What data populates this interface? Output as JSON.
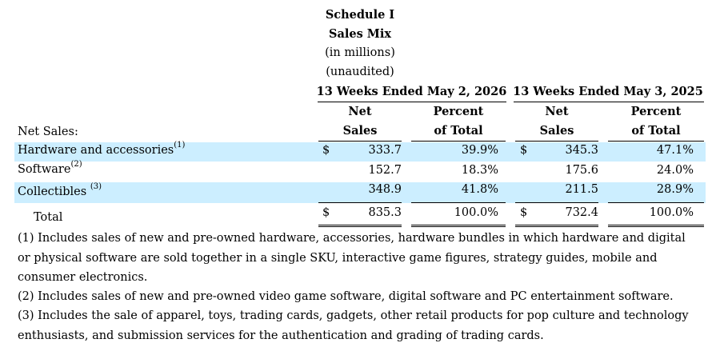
{
  "header": {
    "schedule": "Schedule I",
    "title": "Sales Mix",
    "units": "(in millions)",
    "audit": "(unaudited)"
  },
  "periods": [
    {
      "label": "13 Weeks Ended May 2, 2026",
      "col1_line1": "Net",
      "col1_line2": "Sales",
      "col2_line1": "Percent",
      "col2_line2": "of Total"
    },
    {
      "label": "13 Weeks Ended May 3, 2025",
      "col1_line1": "Net",
      "col1_line2": "Sales",
      "col2_line1": "Percent",
      "col2_line2": "of Total"
    }
  ],
  "section_label": "Net Sales:",
  "rows": [
    {
      "label": "Hardware and accessories",
      "note": "(1)",
      "cur": "$",
      "sales_2026": "333.7",
      "pct_2026": "39.9%",
      "cur2": "$",
      "sales_2025": "345.3",
      "pct_2025": "47.1%",
      "shaded": true
    },
    {
      "label": "Software",
      "note": "(2)",
      "cur": "",
      "sales_2026": "152.7",
      "pct_2026": "18.3%",
      "cur2": "",
      "sales_2025": "175.6",
      "pct_2025": "24.0%",
      "shaded": false
    },
    {
      "label": "Collectibles ",
      "note": "(3)",
      "cur": "",
      "sales_2026": "348.9",
      "pct_2026": "41.8%",
      "cur2": "",
      "sales_2025": "211.5",
      "pct_2025": "28.9%",
      "shaded": true
    }
  ],
  "total": {
    "label": "Total",
    "cur": "$",
    "sales_2026": "835.3",
    "pct_2026": "100.0%",
    "cur2": "$",
    "sales_2025": "732.4",
    "pct_2025": "100.0%"
  },
  "footnotes": [
    "(1) Includes sales of new and pre-owned hardware, accessories, hardware bundles in which hardware and digital or physical software are sold together in a single SKU, interactive game figures, strategy guides, mobile and consumer electronics.",
    "(2) Includes sales of new and pre-owned video game software, digital software and PC entertainment software.",
    "(3) Includes the sale of apparel, toys, trading cards, gadgets, other retail products for pop culture and technology enthusiasts, and submission services for the authentication and grading of trading cards."
  ]
}
